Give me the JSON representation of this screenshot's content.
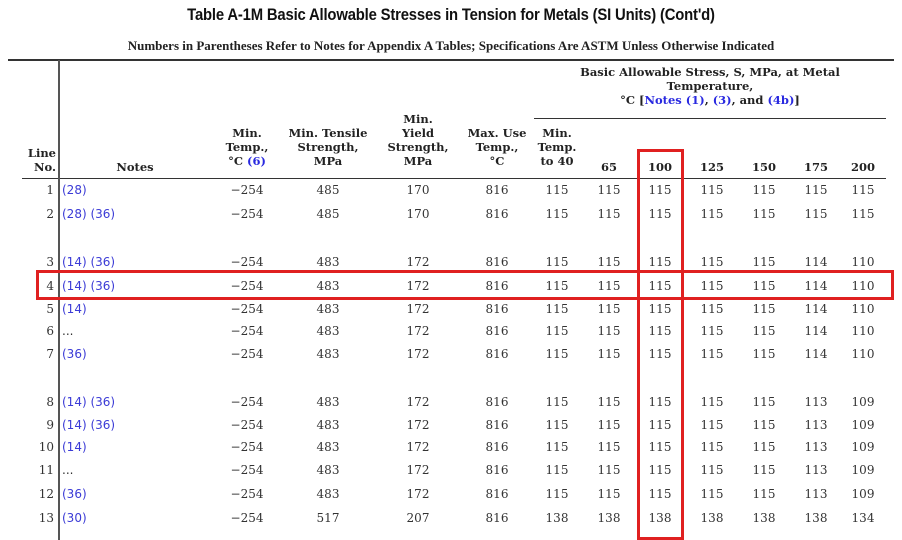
{
  "document": {
    "title": "Table A-1M Basic Allowable Stresses in Tension for Metals (SI Units)  (Cont'd)",
    "subtitle": "Numbers in Parentheses Refer to Notes for Appendix A Tables; Specifications Are ASTM Unless Otherwise Indicated"
  },
  "header": {
    "line_no": [
      "Line",
      "No."
    ],
    "notes": "Notes",
    "min_temp": [
      "Min.",
      "Temp.,",
      "°C "
    ],
    "min_temp_note": "(6)",
    "min_tensile": [
      "Min. Tensile",
      "Strength,",
      "MPa"
    ],
    "min_yield": [
      "Min.",
      "Yield",
      "Strength,",
      "MPa"
    ],
    "max_use": [
      "Max. Use",
      "Temp.,",
      "°C"
    ],
    "stress_group": {
      "line1": "Basic Allowable Stress, S, MPa, at Metal",
      "line2": "Temperature,",
      "line3_prefix": "°C [",
      "note1": "Notes (1)",
      "sep1": ", ",
      "note3": "(3)",
      "sep2": ", and ",
      "note4b": "(4b)",
      "line3_suffix": "]"
    },
    "temp_cols": {
      "t40": [
        "Min.",
        "Temp.",
        "to 40"
      ],
      "t65": "65",
      "t100": "100",
      "t125": "125",
      "t150": "150",
      "t175": "175",
      "t200": "200"
    }
  },
  "rows": [
    {
      "line": "1",
      "notes": "(28)",
      "min_temp": "−254",
      "tensile": "485",
      "yield": "170",
      "max_use": "816",
      "s": [
        "115",
        "115",
        "115",
        "115",
        "115",
        "115",
        "115"
      ]
    },
    {
      "line": "2",
      "notes": "(28) (36)",
      "min_temp": "−254",
      "tensile": "485",
      "yield": "170",
      "max_use": "816",
      "s": [
        "115",
        "115",
        "115",
        "115",
        "115",
        "115",
        "115"
      ]
    },
    {
      "line": "3",
      "notes": "(14) (36)",
      "min_temp": "−254",
      "tensile": "483",
      "yield": "172",
      "max_use": "816",
      "s": [
        "115",
        "115",
        "115",
        "115",
        "115",
        "114",
        "110"
      ]
    },
    {
      "line": "4",
      "notes": "(14) (36)",
      "min_temp": "−254",
      "tensile": "483",
      "yield": "172",
      "max_use": "816",
      "s": [
        "115",
        "115",
        "115",
        "115",
        "115",
        "114",
        "110"
      ]
    },
    {
      "line": "5",
      "notes": "(14)",
      "min_temp": "−254",
      "tensile": "483",
      "yield": "172",
      "max_use": "816",
      "s": [
        "115",
        "115",
        "115",
        "115",
        "115",
        "114",
        "110"
      ]
    },
    {
      "line": "6",
      "notes": "...",
      "min_temp": "−254",
      "tensile": "483",
      "yield": "172",
      "max_use": "816",
      "s": [
        "115",
        "115",
        "115",
        "115",
        "115",
        "114",
        "110"
      ]
    },
    {
      "line": "7",
      "notes": "(36)",
      "min_temp": "−254",
      "tensile": "483",
      "yield": "172",
      "max_use": "816",
      "s": [
        "115",
        "115",
        "115",
        "115",
        "115",
        "114",
        "110"
      ]
    },
    {
      "line": "8",
      "notes": "(14) (36)",
      "min_temp": "−254",
      "tensile": "483",
      "yield": "172",
      "max_use": "816",
      "s": [
        "115",
        "115",
        "115",
        "115",
        "115",
        "113",
        "109"
      ]
    },
    {
      "line": "9",
      "notes": "(14) (36)",
      "min_temp": "−254",
      "tensile": "483",
      "yield": "172",
      "max_use": "816",
      "s": [
        "115",
        "115",
        "115",
        "115",
        "115",
        "113",
        "109"
      ]
    },
    {
      "line": "10",
      "notes": "(14)",
      "min_temp": "−254",
      "tensile": "483",
      "yield": "172",
      "max_use": "816",
      "s": [
        "115",
        "115",
        "115",
        "115",
        "115",
        "113",
        "109"
      ]
    },
    {
      "line": "11",
      "notes": "...",
      "min_temp": "−254",
      "tensile": "483",
      "yield": "172",
      "max_use": "816",
      "s": [
        "115",
        "115",
        "115",
        "115",
        "115",
        "113",
        "109"
      ]
    },
    {
      "line": "12",
      "notes": "(36)",
      "min_temp": "−254",
      "tensile": "483",
      "yield": "172",
      "max_use": "816",
      "s": [
        "115",
        "115",
        "115",
        "115",
        "115",
        "113",
        "109"
      ]
    },
    {
      "line": "13",
      "notes": "(30)",
      "min_temp": "−254",
      "tensile": "517",
      "yield": "207",
      "max_use": "816",
      "s": [
        "138",
        "138",
        "138",
        "138",
        "138",
        "138",
        "134"
      ]
    }
  ],
  "highlights": {
    "column": "100",
    "row": "4",
    "color": "#e02020"
  },
  "colors": {
    "note_link": "#3b3bd6",
    "text": "#333333",
    "highlight": "#e02020"
  }
}
